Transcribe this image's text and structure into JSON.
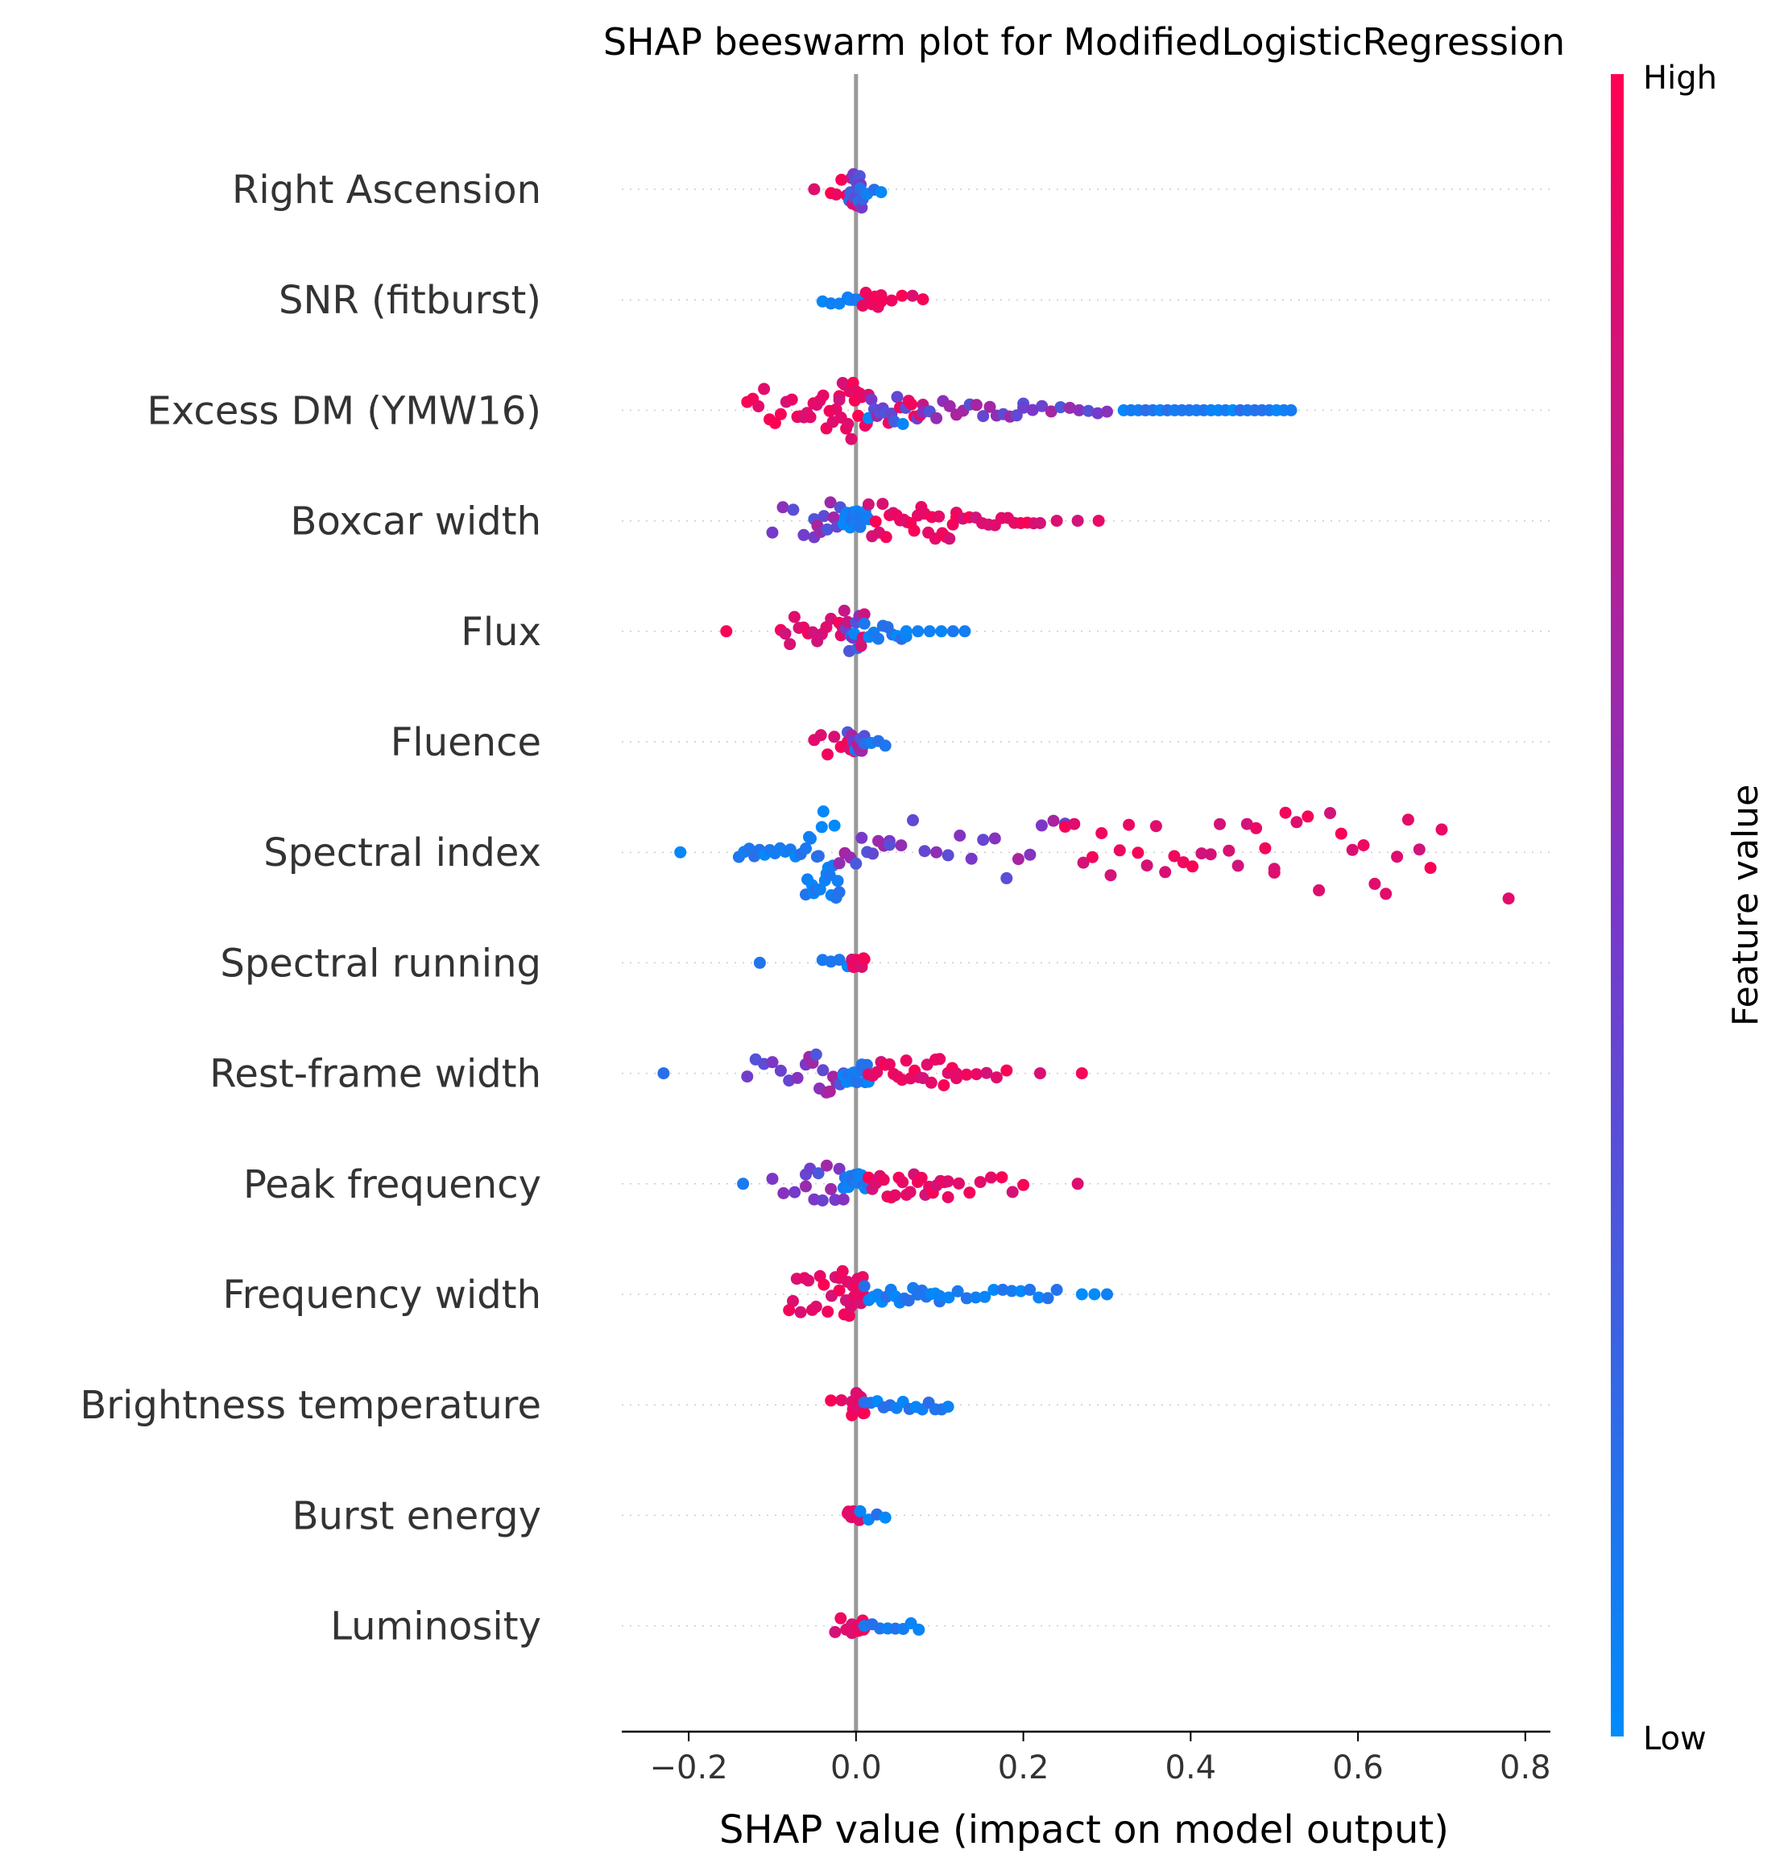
{
  "chart_data": {
    "type": "scatter",
    "subtype": "beeswarm",
    "title": "SHAP beeswarm plot for ModifiedLogisticRegression",
    "xlabel": "SHAP value (impact on model output)",
    "ylabel": "",
    "xlim": [
      -0.28,
      0.83
    ],
    "xticks": [
      -0.2,
      0.0,
      0.2,
      0.4,
      0.6,
      0.8
    ],
    "xtick_labels": [
      "−0.2",
      "0.0",
      "0.2",
      "0.4",
      "0.6",
      "0.8"
    ],
    "grid": "dotted horizontal lines per feature",
    "colorbar": {
      "title": "Feature value",
      "high_label": "High",
      "low_label": "Low",
      "high_color": "#ff0051",
      "mid_color": "#7b37c8",
      "low_color": "#008bfb"
    },
    "features": [
      {
        "name": "Right Ascension",
        "groups": [
          [
            -0.05,
            -0.03,
            1,
            "high",
            0
          ],
          [
            -0.03,
            -0.005,
            5,
            "high",
            0.3
          ],
          [
            -0.008,
            0.008,
            14,
            "mixed",
            0.4
          ],
          [
            0.005,
            0.03,
            4,
            "low",
            0.15
          ]
        ]
      },
      {
        "name": "SNR (fitburst)",
        "groups": [
          [
            -0.04,
            -0.01,
            4,
            "low",
            0.2
          ],
          [
            -0.008,
            0.008,
            14,
            "low",
            0
          ],
          [
            0.008,
            0.03,
            7,
            "high",
            0.15
          ],
          [
            0.03,
            0.08,
            5,
            "high",
            0.1
          ]
        ]
      },
      {
        "name": "Excess DM (YMW16)",
        "groups": [
          [
            -0.13,
            -0.07,
            10,
            "high",
            0.45
          ],
          [
            -0.07,
            -0.02,
            14,
            "high",
            0.4
          ],
          [
            -0.02,
            0.015,
            18,
            "high",
            0.7
          ],
          [
            0.015,
            0.08,
            20,
            "mixed",
            0.3
          ],
          [
            0.08,
            0.2,
            16,
            "mid",
            0.2
          ],
          [
            0.2,
            0.3,
            10,
            "mid",
            0.1
          ],
          [
            0.32,
            0.52,
            24,
            "low",
            0
          ]
        ]
      },
      {
        "name": "Boxcar width",
        "groups": [
          [
            -0.1,
            -0.05,
            5,
            "mid",
            0.3
          ],
          [
            -0.05,
            -0.015,
            10,
            "mid",
            0.4
          ],
          [
            -0.015,
            0.015,
            16,
            "low",
            0.2
          ],
          [
            0.015,
            0.12,
            26,
            "high",
            0.4
          ],
          [
            0.12,
            0.22,
            14,
            "high",
            0.1
          ],
          [
            0.24,
            0.29,
            3,
            "high",
            0
          ]
        ]
      },
      {
        "name": "Flux",
        "groups": [
          [
            -0.155,
            -0.155,
            1,
            "high",
            0
          ],
          [
            -0.09,
            -0.03,
            12,
            "high",
            0.3
          ],
          [
            -0.02,
            0.01,
            16,
            "mixed",
            0.5
          ],
          [
            0.01,
            0.06,
            10,
            "low",
            0.2
          ],
          [
            0.06,
            0.13,
            6,
            "low",
            0
          ]
        ]
      },
      {
        "name": "Fluence",
        "groups": [
          [
            -0.05,
            -0.01,
            6,
            "high",
            0.3
          ],
          [
            -0.01,
            0.01,
            14,
            "mixed",
            0.2
          ],
          [
            0.01,
            0.035,
            4,
            "low",
            0.1
          ]
        ]
      },
      {
        "name": "Spectral index",
        "groups": [
          [
            -0.21,
            -0.21,
            1,
            "low",
            0
          ],
          [
            -0.14,
            -0.06,
            14,
            "low",
            0.1
          ],
          [
            -0.06,
            -0.02,
            22,
            "low",
            1
          ],
          [
            -0.02,
            0.04,
            10,
            "mid",
            0.3
          ],
          [
            0.04,
            0.25,
            16,
            "mid",
            0.7
          ],
          [
            0.25,
            0.5,
            24,
            "high",
            0.6
          ],
          [
            0.5,
            0.7,
            16,
            "high",
            0.95
          ],
          [
            0.78,
            0.78,
            1,
            "high",
            1
          ]
        ]
      },
      {
        "name": "Spectral running",
        "groups": [
          [
            -0.115,
            -0.115,
            1,
            "low",
            0
          ],
          [
            -0.04,
            -0.01,
            4,
            "low",
            0.1
          ],
          [
            -0.005,
            0.01,
            16,
            "high",
            0.1
          ]
        ]
      },
      {
        "name": "Rest-frame width",
        "groups": [
          [
            -0.23,
            -0.23,
            1,
            "low",
            0
          ],
          [
            -0.13,
            -0.06,
            8,
            "mid",
            0.3
          ],
          [
            -0.06,
            -0.015,
            12,
            "mid",
            0.4
          ],
          [
            -0.015,
            0.015,
            16,
            "low",
            0.2
          ],
          [
            0.015,
            0.12,
            22,
            "high",
            0.3
          ],
          [
            0.12,
            0.18,
            6,
            "high",
            0.1
          ],
          [
            0.22,
            0.27,
            2,
            "high",
            0
          ]
        ]
      },
      {
        "name": "Peak frequency",
        "groups": [
          [
            -0.135,
            -0.135,
            1,
            "low",
            0
          ],
          [
            -0.1,
            -0.06,
            4,
            "mid",
            0.3
          ],
          [
            -0.06,
            -0.015,
            10,
            "mid",
            0.4
          ],
          [
            -0.015,
            0.015,
            16,
            "low",
            0.2
          ],
          [
            0.015,
            0.11,
            22,
            "high",
            0.3
          ],
          [
            0.11,
            0.2,
            8,
            "high",
            0.2
          ],
          [
            0.265,
            0.265,
            1,
            "high",
            0
          ]
        ]
      },
      {
        "name": "Frequency width",
        "groups": [
          [
            -0.08,
            -0.02,
            14,
            "high",
            0.4
          ],
          [
            -0.02,
            0.01,
            16,
            "high",
            0.5
          ],
          [
            0.01,
            0.1,
            18,
            "low",
            0.2
          ],
          [
            0.1,
            0.24,
            14,
            "low",
            0.1
          ],
          [
            0.27,
            0.3,
            3,
            "low",
            0
          ]
        ]
      },
      {
        "name": "Brightness temperature",
        "groups": [
          [
            -0.03,
            -0.005,
            3,
            "high",
            0.1
          ],
          [
            -0.005,
            0.01,
            12,
            "high",
            0.25
          ],
          [
            0.01,
            0.11,
            14,
            "low",
            0.1
          ]
        ]
      },
      {
        "name": "Burst energy",
        "groups": [
          [
            -0.01,
            0.005,
            16,
            "high",
            0.1
          ],
          [
            0.005,
            0.035,
            4,
            "low",
            0.1
          ]
        ]
      },
      {
        "name": "Luminosity",
        "groups": [
          [
            -0.025,
            -0.005,
            4,
            "high",
            0.2
          ],
          [
            -0.005,
            0.01,
            16,
            "high",
            0.15
          ],
          [
            0.01,
            0.075,
            8,
            "low",
            0.1
          ]
        ]
      }
    ]
  }
}
